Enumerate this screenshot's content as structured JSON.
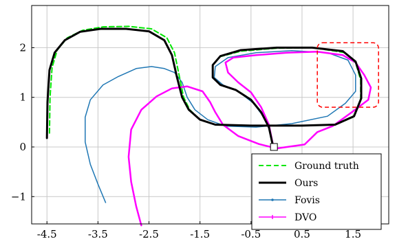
{
  "chart_data": {
    "type": "line",
    "title": "",
    "xlabel": "",
    "ylabel": "",
    "xlim": [
      -4.8,
      2.2
    ],
    "ylim": [
      -1.55,
      2.85
    ],
    "grid": true,
    "legend_position": "bottom-right",
    "x_ticks": [
      -4.5,
      -3.5,
      -2.5,
      -1.5,
      -0.5,
      0.5,
      1.5
    ],
    "x_tick_labels": [
      "-4.5",
      "-3.5",
      "-2.5",
      "-1.5",
      "-0.5",
      "0.5",
      "1.5"
    ],
    "y_ticks": [
      -1,
      0,
      1,
      2
    ],
    "y_tick_labels": [
      "−1",
      "0",
      "1",
      "2"
    ],
    "series": [
      {
        "name": "Ground truth",
        "color": "#00e600",
        "style": "dashed",
        "points": [
          [
            -4.45,
            0.28
          ],
          [
            -4.44,
            1.0
          ],
          [
            -4.4,
            1.6
          ],
          [
            -4.3,
            1.95
          ],
          [
            -4.1,
            2.2
          ],
          [
            -3.8,
            2.35
          ],
          [
            -3.4,
            2.42
          ],
          [
            -2.9,
            2.43
          ],
          [
            -2.45,
            2.38
          ],
          [
            -2.15,
            2.2
          ],
          [
            -2.0,
            1.9
          ],
          [
            -1.9,
            1.4
          ],
          [
            -1.82,
            1.0
          ],
          [
            -1.7,
            0.75
          ],
          [
            -1.5,
            0.55
          ],
          [
            -1.2,
            0.45
          ],
          [
            -0.5,
            0.43
          ],
          [
            0.5,
            0.43
          ],
          [
            1.15,
            0.45
          ],
          [
            1.5,
            0.6
          ],
          [
            1.65,
            0.95
          ],
          [
            1.65,
            1.35
          ],
          [
            1.55,
            1.7
          ],
          [
            1.35,
            1.9
          ],
          [
            0.7,
            2.0
          ],
          [
            0.0,
            1.99
          ],
          [
            -0.7,
            1.93
          ],
          [
            -1.1,
            1.82
          ],
          [
            -1.25,
            1.65
          ],
          [
            -1.25,
            1.4
          ],
          [
            -1.1,
            1.25
          ],
          [
            -0.8,
            1.15
          ],
          [
            -0.5,
            0.95
          ],
          [
            -0.3,
            0.7
          ],
          [
            -0.15,
            0.4
          ],
          [
            -0.07,
            0.02
          ]
        ]
      },
      {
        "name": "Ours",
        "color": "#000000",
        "style": "solid",
        "points": [
          [
            -4.5,
            0.18
          ],
          [
            -4.49,
            0.9
          ],
          [
            -4.45,
            1.55
          ],
          [
            -4.35,
            1.9
          ],
          [
            -4.15,
            2.15
          ],
          [
            -3.85,
            2.32
          ],
          [
            -3.45,
            2.38
          ],
          [
            -2.95,
            2.38
          ],
          [
            -2.5,
            2.33
          ],
          [
            -2.2,
            2.15
          ],
          [
            -2.05,
            1.85
          ],
          [
            -1.95,
            1.4
          ],
          [
            -1.85,
            1.0
          ],
          [
            -1.72,
            0.75
          ],
          [
            -1.5,
            0.55
          ],
          [
            -1.2,
            0.45
          ],
          [
            -0.5,
            0.43
          ],
          [
            0.5,
            0.43
          ],
          [
            1.15,
            0.45
          ],
          [
            1.52,
            0.62
          ],
          [
            1.66,
            0.98
          ],
          [
            1.66,
            1.38
          ],
          [
            1.55,
            1.72
          ],
          [
            1.3,
            1.93
          ],
          [
            0.7,
            2.0
          ],
          [
            0.0,
            2.0
          ],
          [
            -0.7,
            1.95
          ],
          [
            -1.1,
            1.83
          ],
          [
            -1.25,
            1.65
          ],
          [
            -1.25,
            1.4
          ],
          [
            -1.1,
            1.25
          ],
          [
            -0.8,
            1.15
          ],
          [
            -0.5,
            0.95
          ],
          [
            -0.3,
            0.7
          ],
          [
            -0.15,
            0.4
          ],
          [
            -0.07,
            0.02
          ]
        ]
      },
      {
        "name": "Fovis",
        "color": "#1f77b4",
        "style": "solid",
        "points": [
          [
            -3.35,
            -1.12
          ],
          [
            -3.5,
            -0.75
          ],
          [
            -3.65,
            -0.35
          ],
          [
            -3.75,
            0.1
          ],
          [
            -3.75,
            0.6
          ],
          [
            -3.65,
            0.95
          ],
          [
            -3.4,
            1.25
          ],
          [
            -3.1,
            1.42
          ],
          [
            -2.75,
            1.58
          ],
          [
            -2.45,
            1.62
          ],
          [
            -2.2,
            1.58
          ],
          [
            -2.0,
            1.5
          ],
          [
            -1.85,
            1.3
          ],
          [
            -1.75,
            1.0
          ],
          [
            -1.6,
            0.75
          ],
          [
            -1.35,
            0.55
          ],
          [
            -1.0,
            0.42
          ],
          [
            -0.4,
            0.4
          ],
          [
            0.3,
            0.47
          ],
          [
            1.0,
            0.62
          ],
          [
            1.35,
            0.88
          ],
          [
            1.55,
            1.12
          ],
          [
            1.55,
            1.45
          ],
          [
            1.4,
            1.75
          ],
          [
            1.0,
            1.9
          ],
          [
            0.3,
            1.94
          ],
          [
            -0.4,
            1.9
          ],
          [
            -0.95,
            1.8
          ],
          [
            -1.2,
            1.62
          ],
          [
            -1.22,
            1.4
          ],
          [
            -1.05,
            1.25
          ],
          [
            -0.75,
            1.12
          ],
          [
            -0.45,
            0.88
          ],
          [
            -0.25,
            0.6
          ],
          [
            -0.12,
            0.3
          ],
          [
            -0.07,
            0.02
          ]
        ]
      },
      {
        "name": "DVO",
        "color": "#ff00ff",
        "style": "solid-marker",
        "points": [
          [
            -2.65,
            -1.58
          ],
          [
            -2.75,
            -1.2
          ],
          [
            -2.85,
            -0.7
          ],
          [
            -2.9,
            -0.2
          ],
          [
            -2.85,
            0.35
          ],
          [
            -2.65,
            0.75
          ],
          [
            -2.35,
            1.02
          ],
          [
            -2.05,
            1.18
          ],
          [
            -1.75,
            1.22
          ],
          [
            -1.45,
            1.12
          ],
          [
            -1.3,
            0.9
          ],
          [
            -1.2,
            0.7
          ],
          [
            -1.05,
            0.45
          ],
          [
            -0.75,
            0.22
          ],
          [
            -0.35,
            0.06
          ],
          [
            0.0,
            -0.03
          ],
          [
            0.35,
            0.02
          ],
          [
            0.55,
            0.05
          ],
          [
            0.8,
            0.3
          ],
          [
            1.1,
            0.42
          ],
          [
            1.45,
            0.68
          ],
          [
            1.8,
            0.95
          ],
          [
            1.85,
            1.2
          ],
          [
            1.72,
            1.45
          ],
          [
            1.55,
            1.7
          ],
          [
            1.3,
            1.85
          ],
          [
            0.8,
            1.92
          ],
          [
            0.2,
            1.9
          ],
          [
            -0.4,
            1.85
          ],
          [
            -0.85,
            1.8
          ],
          [
            -1.0,
            1.7
          ],
          [
            -0.95,
            1.5
          ],
          [
            -0.75,
            1.3
          ],
          [
            -0.5,
            1.1
          ],
          [
            -0.3,
            0.8
          ],
          [
            -0.15,
            0.45
          ],
          [
            -0.07,
            0.05
          ]
        ]
      }
    ],
    "start_marker": {
      "x": -0.05,
      "y": 0.0
    },
    "highlight_box": {
      "x_range": [
        0.8,
        2.0
      ],
      "y_range": [
        0.8,
        2.1
      ],
      "color": "#ff0000",
      "style": "dashed"
    }
  }
}
